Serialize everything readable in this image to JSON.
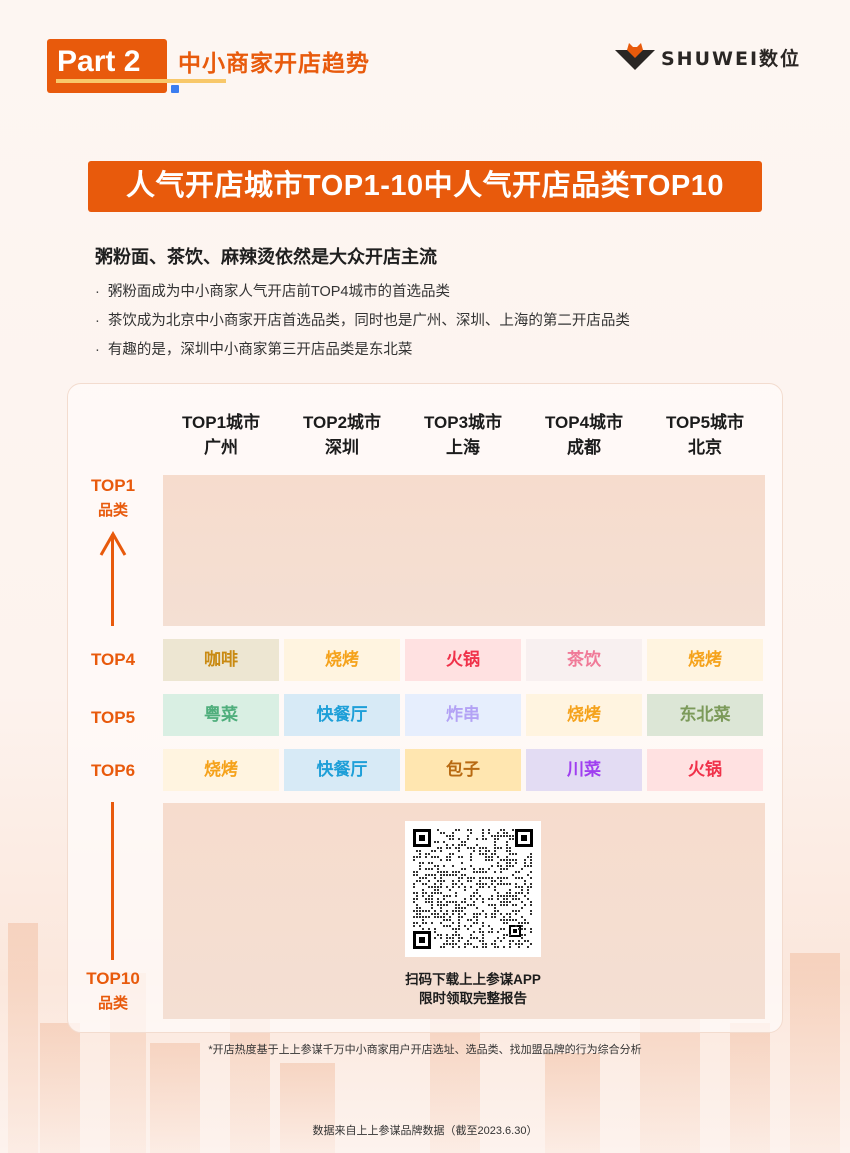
{
  "header": {
    "part_label": "Part 2",
    "section_title": "中小商家开店趋势",
    "logo_text": "SHUWEI数位"
  },
  "banner": {
    "title": "人气开店城市TOP1-10中人气开店品类TOP10"
  },
  "summary": {
    "headline": "粥粉面、茶饮、麻辣烫依然是大众开店主流",
    "bullets": [
      "粥粉面成为中小商家人气开店前TOP4城市的首选品类",
      "茶饮成为北京中小商家开店首选品类，同时也是广州、深圳、上海的第二开店品类",
      "有趣的是，深圳中小商家第三开店品类是东北菜"
    ]
  },
  "table": {
    "columns": [
      {
        "rank": "TOP1城市",
        "city": "广州"
      },
      {
        "rank": "TOP2城市",
        "city": "深圳"
      },
      {
        "rank": "TOP3城市",
        "city": "上海"
      },
      {
        "rank": "TOP4城市",
        "city": "成都"
      },
      {
        "rank": "TOP5城市",
        "city": "北京"
      }
    ],
    "axis_top": {
      "rank": "TOP1",
      "label": "品类"
    },
    "axis_bottom": {
      "rank": "TOP10",
      "label": "品类"
    },
    "rows": [
      {
        "label": "TOP4",
        "cells": [
          {
            "text": "咖啡",
            "bg": "#ede6d2",
            "fg": "#c98a12"
          },
          {
            "text": "烧烤",
            "bg": "#fff4e0",
            "fg": "#f5a21b"
          },
          {
            "text": "火锅",
            "bg": "#ffe1e1",
            "fg": "#f0324a"
          },
          {
            "text": "茶饮",
            "bg": "#f8f0f0",
            "fg": "#f07a98"
          },
          {
            "text": "烧烤",
            "bg": "#fff4e0",
            "fg": "#f5a21b"
          }
        ]
      },
      {
        "label": "TOP5",
        "cells": [
          {
            "text": "粤菜",
            "bg": "#d9efe3",
            "fg": "#4fae7c"
          },
          {
            "text": "快餐厅",
            "bg": "#d7eaf6",
            "fg": "#1e9fd8"
          },
          {
            "text": "炸串",
            "bg": "#e6eefd",
            "fg": "#b3a2f5"
          },
          {
            "text": "烧烤",
            "bg": "#fff4e0",
            "fg": "#f5a21b"
          },
          {
            "text": "东北菜",
            "bg": "#dce6d6",
            "fg": "#7c9a5a"
          }
        ]
      },
      {
        "label": "TOP6",
        "cells": [
          {
            "text": "烧烤",
            "bg": "#fff4e0",
            "fg": "#f5a21b"
          },
          {
            "text": "快餐厅",
            "bg": "#d7eaf6",
            "fg": "#1e9fd8"
          },
          {
            "text": "包子",
            "bg": "#ffe6b0",
            "fg": "#b86a12"
          },
          {
            "text": "川菜",
            "bg": "#e3dcf3",
            "fg": "#a03ff0"
          },
          {
            "text": "火锅",
            "bg": "#ffe1e1",
            "fg": "#f0324a"
          }
        ]
      }
    ]
  },
  "qr": {
    "caption_line1": "扫码下载上上参谋APP",
    "caption_line2": "限时领取完整报告"
  },
  "footnote": "*开店热度基于上上参谋千万中小商家用户开店选址、选品类、找加盟品牌的行为综合分析",
  "source": "数据来自上上参谋品牌数据（截至2023.6.30）",
  "colors": {
    "accent": "#e85a0c",
    "underline": "#f8c86a",
    "dot": "#3b7df0"
  }
}
